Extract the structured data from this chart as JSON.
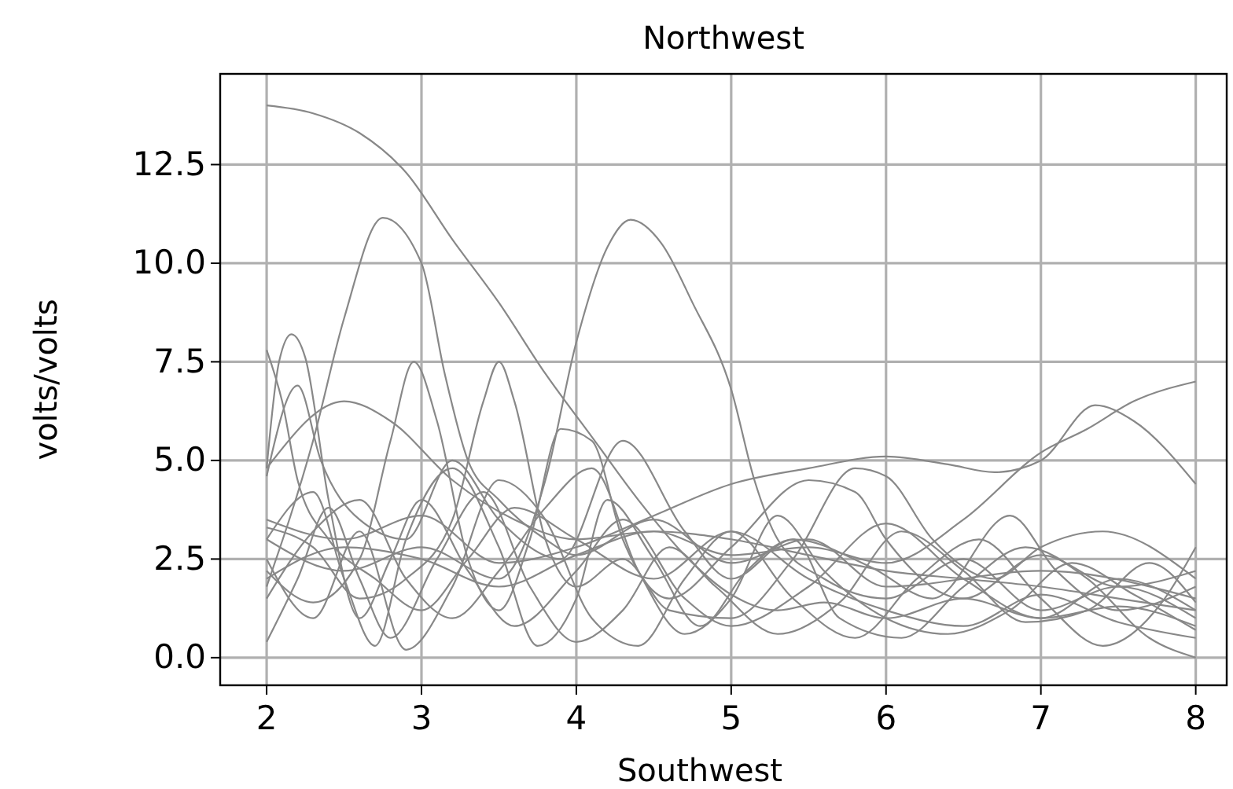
{
  "chart_data": {
    "type": "line",
    "title": "Northwest",
    "xlabel": "Southwest",
    "ylabel": "volts/volts",
    "xlim": [
      1.7,
      8.2
    ],
    "ylim": [
      -0.7,
      14.8
    ],
    "xticks": [
      2,
      3,
      4,
      5,
      6,
      7,
      8
    ],
    "yticks": [
      {
        "value": 0,
        "label": "0.0"
      },
      {
        "value": 2.5,
        "label": "2.5"
      },
      {
        "value": 5,
        "label": "5.0"
      },
      {
        "value": 7.5,
        "label": "7.5"
      },
      {
        "value": 10,
        "label": "10.0"
      },
      {
        "value": 12.5,
        "label": "12.5"
      }
    ],
    "grid": true,
    "line_style": "solid",
    "series": [
      {
        "color": "#888888",
        "x": [
          2,
          2.3,
          2.6,
          2.9,
          3.2,
          3.5,
          3.8,
          4.1,
          4.4,
          4.7,
          5.0,
          5.3,
          5.6,
          6.0,
          6.5,
          7.0,
          7.5,
          8
        ],
        "values": [
          14.0,
          13.8,
          13.3,
          12.3,
          10.6,
          9.0,
          7.2,
          5.6,
          4.0,
          2.6,
          1.6,
          1.2,
          1.4,
          1.0,
          1.5,
          1.0,
          1.3,
          0.8
        ]
      },
      {
        "color": "#888888",
        "x": [
          2,
          2.3,
          2.5,
          2.75,
          3.0,
          3.15,
          3.3,
          3.5,
          3.8,
          4.0,
          4.5,
          5,
          5.5,
          6,
          7,
          8
        ],
        "values": [
          1.8,
          5.5,
          8.6,
          11.15,
          10.0,
          7.2,
          5.0,
          4.0,
          3.0,
          2.6,
          3.5,
          2.4,
          3.0,
          1.8,
          2.2,
          1.5
        ]
      },
      {
        "color": "#888888",
        "x": [
          2,
          2.5,
          3,
          3.5,
          3.8,
          4.0,
          4.2,
          4.35,
          4.55,
          4.75,
          5.0,
          5.15,
          5.3,
          5.6,
          6,
          6.5,
          7,
          7.5,
          8
        ],
        "values": [
          3.0,
          2.2,
          2.8,
          2.0,
          4.5,
          8.0,
          10.4,
          11.1,
          10.5,
          9.0,
          6.8,
          4.5,
          3.0,
          2.0,
          1.5,
          2.5,
          1.2,
          1.8,
          1.0
        ]
      },
      {
        "color": "#888888",
        "x": [
          2,
          2.5,
          2.8,
          3.2,
          3.6,
          4,
          4.5,
          5,
          5.5,
          6,
          6.5,
          7,
          7.3,
          7.6,
          8
        ],
        "values": [
          4.8,
          6.5,
          6.0,
          4.5,
          3.5,
          3.0,
          3.2,
          2.6,
          2.8,
          2.4,
          3.5,
          5.2,
          5.8,
          6.5,
          7.0
        ]
      },
      {
        "color": "#888888",
        "x": [
          2,
          2.5,
          3,
          3.5,
          4,
          4.5,
          5,
          5.5,
          6,
          6.4,
          6.7,
          7,
          7.35,
          7.6,
          8
        ],
        "values": [
          3.5,
          3.0,
          3.6,
          2.4,
          2.8,
          3.6,
          4.4,
          4.8,
          5.1,
          4.9,
          4.7,
          5.0,
          6.4,
          6.0,
          4.4
        ]
      },
      {
        "color": "#888888",
        "x": [
          2,
          2.1,
          2.2,
          2.4,
          2.7,
          3,
          3.3,
          3.6,
          4,
          4.5,
          5,
          5.5,
          6,
          6.5,
          7,
          7.5,
          8
        ],
        "values": [
          7.8,
          6.5,
          4.5,
          3.0,
          2.0,
          1.2,
          2.5,
          3.8,
          3.0,
          2.0,
          3.2,
          2.0,
          1.2,
          0.8,
          1.6,
          0.9,
          0.5
        ]
      },
      {
        "color": "#888888",
        "x": [
          2,
          2.08,
          2.16,
          2.25,
          2.4,
          2.6,
          2.8,
          3,
          3.3,
          3.6,
          4,
          4.3,
          4.7,
          5,
          5.5,
          6,
          6.5,
          7,
          7.5,
          8
        ],
        "values": [
          4.8,
          7.5,
          8.2,
          7.6,
          4.0,
          1.0,
          2.5,
          4.0,
          2.2,
          0.8,
          2.2,
          3.5,
          1.5,
          0.8,
          1.8,
          3.4,
          2.0,
          1.0,
          2.0,
          1.2
        ]
      },
      {
        "color": "#888888",
        "x": [
          2,
          2.3,
          2.6,
          2.8,
          2.95,
          3.1,
          3.3,
          3.5,
          3.7,
          3.9,
          4.1,
          4.3,
          4.6,
          5,
          5.5,
          5.8,
          6,
          6.5,
          7,
          7.5,
          8
        ],
        "values": [
          2.2,
          1.4,
          2.5,
          5.5,
          7.5,
          6.0,
          2.5,
          1.2,
          3.0,
          5.8,
          5.5,
          3.0,
          1.5,
          2.8,
          4.5,
          4.2,
          3.0,
          1.5,
          2.6,
          1.8,
          2.2
        ]
      },
      {
        "color": "#888888",
        "x": [
          2,
          2.3,
          2.6,
          2.9,
          3.2,
          3.4,
          3.5,
          3.6,
          3.8,
          4,
          4.3,
          4.6,
          5,
          5.4,
          5.8,
          6,
          6.3,
          6.7,
          7,
          7.4,
          8
        ],
        "values": [
          3.3,
          2.8,
          1.5,
          2.0,
          3.5,
          6.5,
          7.5,
          6.5,
          3.0,
          1.8,
          2.5,
          1.2,
          1.0,
          2.5,
          4.8,
          4.6,
          3.0,
          2.0,
          2.8,
          3.2,
          2.0
        ]
      },
      {
        "color": "#888888",
        "x": [
          2,
          2.2,
          2.35,
          2.6,
          2.9,
          3.2,
          3.5,
          3.9,
          4.3,
          4.7,
          5,
          5.4,
          5.9,
          6.3,
          6.8,
          7.1,
          7.5,
          8
        ],
        "values": [
          4.6,
          6.9,
          5.0,
          3.5,
          3.0,
          5.0,
          3.5,
          2.5,
          5.5,
          3.2,
          2.0,
          3.0,
          2.3,
          1.5,
          3.6,
          2.2,
          1.2,
          1.8
        ]
      },
      {
        "color": "#888888",
        "x": [
          2,
          2.2,
          2.4,
          2.6,
          2.8,
          3.1,
          3.4,
          3.7,
          4,
          4.3,
          4.6,
          4.9,
          5.3,
          5.7,
          6.1,
          6.5,
          6.9,
          7.3,
          7.7,
          8
        ],
        "values": [
          0.4,
          2.0,
          3.8,
          2.0,
          0.5,
          2.5,
          4.2,
          1.8,
          0.4,
          1.2,
          2.8,
          1.8,
          0.6,
          1.4,
          3.2,
          2.2,
          0.9,
          1.2,
          2.4,
          1.4
        ]
      },
      {
        "color": "#888888",
        "x": [
          2,
          2.3,
          2.5,
          2.7,
          2.9,
          3.2,
          3.5,
          3.75,
          4,
          4.2,
          4.5,
          4.8,
          5.1,
          5.4,
          5.7,
          6.1,
          6.5,
          6.9,
          7.3,
          7.7,
          8
        ],
        "values": [
          3.0,
          4.2,
          2.0,
          0.3,
          3.0,
          4.8,
          2.8,
          0.3,
          1.5,
          4.0,
          2.5,
          0.8,
          2.2,
          3.0,
          1.0,
          0.5,
          1.8,
          2.8,
          2.0,
          0.5,
          0.0
        ]
      },
      {
        "color": "#888888",
        "x": [
          2,
          2.3,
          2.6,
          2.9,
          3.2,
          3.5,
          3.8,
          4.1,
          4.4,
          4.7,
          5,
          5.4,
          5.8,
          6.2,
          6.6,
          7,
          7.4,
          7.8,
          8
        ],
        "values": [
          2.5,
          1.0,
          3.2,
          0.2,
          1.8,
          4.5,
          3.5,
          1.0,
          0.3,
          2.0,
          3.2,
          1.5,
          0.5,
          2.0,
          3.0,
          1.5,
          0.3,
          1.5,
          2.8
        ]
      },
      {
        "color": "#888888",
        "x": [
          2,
          2.5,
          3,
          3.5,
          4,
          4.5,
          5,
          5.5,
          6,
          6.5,
          7,
          7.5,
          8
        ],
        "values": [
          2.0,
          2.8,
          2.5,
          1.8,
          2.6,
          3.2,
          3.0,
          2.6,
          2.2,
          2.0,
          1.8,
          1.5,
          1.2
        ]
      },
      {
        "color": "#888888",
        "x": [
          2,
          2.3,
          2.6,
          2.9,
          3.2,
          3.5,
          3.8,
          4.1,
          4.4,
          4.7,
          5,
          5.3,
          5.6,
          6,
          6.4,
          6.8,
          7.2,
          7.6,
          8
        ],
        "values": [
          1.5,
          3.2,
          4.0,
          2.0,
          1.0,
          2.2,
          3.8,
          4.8,
          2.2,
          0.6,
          1.5,
          3.6,
          2.2,
          1.0,
          0.6,
          1.2,
          2.4,
          1.6,
          0.7
        ]
      }
    ]
  }
}
